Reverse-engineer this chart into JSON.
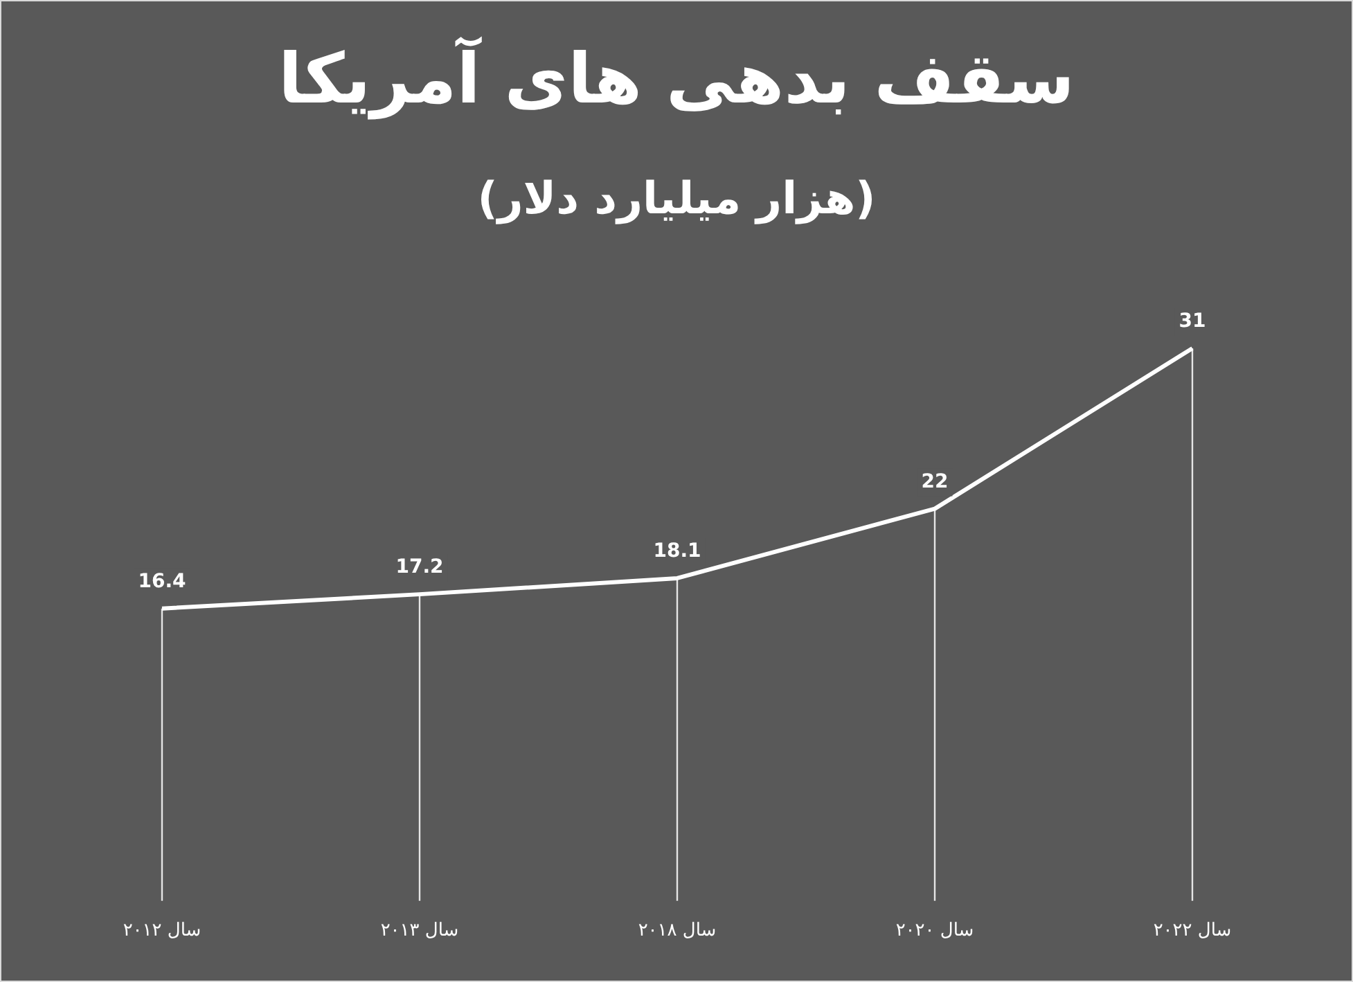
{
  "chart_data": {
    "type": "line",
    "title": "سقف بدهی های آمریکا",
    "subtitle": "(هزار میلیارد دلار)",
    "categories": [
      "سال ۲۰۱۲",
      "سال ۲۰۱۳",
      "سال ۲۰۱۸",
      "سال ۲۰۲۰",
      "سال ۲۰۲۲"
    ],
    "series": [
      {
        "color": "#ffffff",
        "values": [
          16.4,
          17.2,
          18.1,
          22,
          31
        ]
      }
    ],
    "tick_labels": "x",
    "grid": "x",
    "legend": false,
    "marker": "none",
    "data_labels": true
  }
}
